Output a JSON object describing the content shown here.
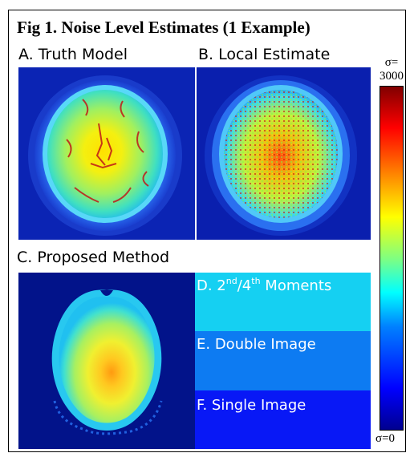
{
  "figure": {
    "title": "Fig 1. Noise Level Estimates (1 Example)",
    "panels": {
      "a_label": "A. Truth Model",
      "b_label": "B. Local Estimate",
      "c_label": "C. Proposed Method"
    },
    "bands": {
      "d_prefix": "D. 2",
      "d_sup1": "nd",
      "d_mid": "/4",
      "d_sup2": "th",
      "d_suffix": " Moments",
      "e_label": "E. Double Image",
      "f_label": "F. Single Image"
    },
    "colorbar": {
      "top_sigma": "σ=",
      "top_value": "3000",
      "bottom_label": "σ=0",
      "colors": [
        "#00008f",
        "#0000ff",
        "#0080ff",
        "#00ffff",
        "#80ff80",
        "#ffff00",
        "#ff8000",
        "#ff0000",
        "#800000"
      ]
    }
  }
}
